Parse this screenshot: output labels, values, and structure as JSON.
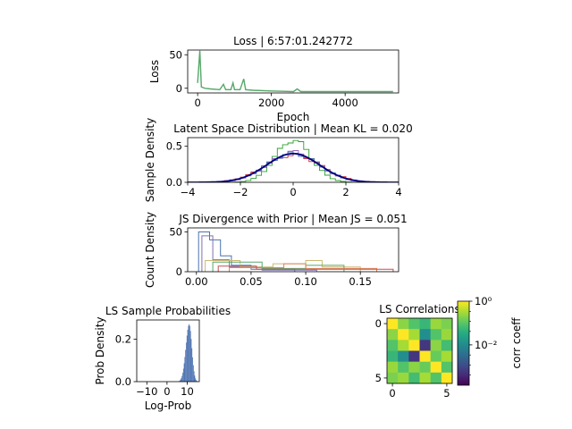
{
  "chart_data": [
    {
      "type": "line",
      "title": "Loss | 6:57:01.242772",
      "xlabel": "Epoch",
      "ylabel": "Loss",
      "xlim": [
        -270,
        5450
      ],
      "ylim": [
        -7,
        57
      ],
      "xticks": [
        0,
        2000,
        4000
      ],
      "yticks": [
        0,
        50
      ],
      "series": [
        {
          "color": "#55a868",
          "points": [
            [
              0,
              8
            ],
            [
              60,
              56
            ],
            [
              100,
              2
            ],
            [
              200,
              0
            ],
            [
              350,
              -1
            ],
            [
              600,
              -2
            ],
            [
              700,
              6
            ],
            [
              760,
              -2
            ],
            [
              900,
              -2
            ],
            [
              960,
              8
            ],
            [
              1000,
              -2
            ],
            [
              1150,
              -2
            ],
            [
              1250,
              14
            ],
            [
              1300,
              -2
            ],
            [
              1500,
              -3
            ],
            [
              2000,
              -4
            ],
            [
              2600,
              -5
            ],
            [
              2700,
              -1
            ],
            [
              2800,
              -5
            ],
            [
              3500,
              -5
            ],
            [
              4000,
              -5
            ],
            [
              4600,
              -5
            ],
            [
              5300,
              -5
            ]
          ]
        }
      ]
    },
    {
      "type": "line",
      "title": "Latent Space Distribution | Mean KL = 0.020",
      "xlabel": "",
      "ylabel": "Sample Density",
      "xlim": [
        -4,
        4
      ],
      "ylim": [
        0,
        0.62
      ],
      "xticks": [
        -4,
        -2,
        0,
        2,
        4
      ],
      "yticks": [
        0.0,
        0.5
      ],
      "series": [
        {
          "color": "#2ca02c",
          "sigma": 0.68
        },
        {
          "color": "#d62728",
          "sigma": 1.05
        },
        {
          "color": "#9467bd",
          "sigma": 0.95
        },
        {
          "color": "#4c72b0",
          "sigma": 1.0
        },
        {
          "color": "#000080",
          "sigma": 1.0
        }
      ]
    },
    {
      "type": "line",
      "title": "JS Divergence with Prior | Mean JS = 0.051",
      "xlabel": "",
      "ylabel": "Count Density",
      "xlim": [
        -0.008,
        0.185
      ],
      "ylim": [
        0,
        55
      ],
      "xticks": [
        0.0,
        0.05,
        0.1,
        0.15
      ],
      "yticks": [
        0,
        50
      ],
      "series": [
        {
          "color": "#4c72b0",
          "points": [
            [
              0.002,
              0
            ],
            [
              0.002,
              50
            ],
            [
              0.012,
              50
            ],
            [
              0.012,
              40
            ],
            [
              0.022,
              40
            ],
            [
              0.022,
              20
            ],
            [
              0.032,
              20
            ],
            [
              0.032,
              8
            ],
            [
              0.05,
              8
            ],
            [
              0.05,
              3
            ],
            [
              0.09,
              3
            ],
            [
              0.09,
              0
            ]
          ]
        },
        {
          "color": "#8172b2",
          "points": [
            [
              0.005,
              0
            ],
            [
              0.005,
              45
            ],
            [
              0.015,
              45
            ],
            [
              0.015,
              15
            ],
            [
              0.03,
              15
            ],
            [
              0.03,
              6
            ],
            [
              0.06,
              6
            ],
            [
              0.06,
              2
            ],
            [
              0.11,
              2
            ],
            [
              0.11,
              0
            ]
          ]
        },
        {
          "color": "#ccb974",
          "points": [
            [
              0.008,
              0
            ],
            [
              0.008,
              14
            ],
            [
              0.04,
              14
            ],
            [
              0.04,
              6
            ],
            [
              0.07,
              6
            ],
            [
              0.07,
              10
            ],
            [
              0.1,
              10
            ],
            [
              0.1,
              14
            ],
            [
              0.115,
              14
            ],
            [
              0.115,
              6
            ],
            [
              0.15,
              6
            ],
            [
              0.15,
              0
            ]
          ]
        },
        {
          "color": "#55a868",
          "points": [
            [
              0.015,
              0
            ],
            [
              0.015,
              12
            ],
            [
              0.06,
              12
            ],
            [
              0.06,
              4
            ],
            [
              0.1,
              4
            ],
            [
              0.1,
              8
            ],
            [
              0.135,
              8
            ],
            [
              0.135,
              0
            ]
          ]
        },
        {
          "color": "#dd8452",
          "points": [
            [
              0.03,
              0
            ],
            [
              0.03,
              5
            ],
            [
              0.08,
              5
            ],
            [
              0.08,
              10
            ],
            [
              0.1,
              10
            ],
            [
              0.1,
              4
            ],
            [
              0.165,
              4
            ],
            [
              0.165,
              0
            ]
          ]
        },
        {
          "color": "#c44e52",
          "points": [
            [
              0.02,
              0
            ],
            [
              0.02,
              7
            ],
            [
              0.055,
              7
            ],
            [
              0.055,
              3
            ],
            [
              0.18,
              3
            ],
            [
              0.18,
              0
            ]
          ]
        }
      ]
    },
    {
      "type": "bar",
      "title": "LS Sample Probabilities",
      "xlabel": "Log-Prob",
      "ylabel": "Prob Density",
      "xlim": [
        -15,
        16
      ],
      "ylim": [
        0,
        0.29
      ],
      "xticks": [
        -10,
        0,
        10
      ],
      "yticks": [
        0.0,
        0.2
      ],
      "color": "#4c72b0",
      "mean": 11,
      "sd": 1.45,
      "peak": 0.27
    },
    {
      "type": "heatmap",
      "title": "LS Correlations",
      "xticks": [
        0,
        5
      ],
      "yticks": [
        0,
        5
      ],
      "colorbar_label": "corr coeff",
      "colorbar_ticks": [
        "10⁰",
        "10⁻²"
      ],
      "matrix": [
        [
          1.0,
          0.3,
          0.15,
          0.1,
          0.35,
          0.25
        ],
        [
          0.3,
          1.0,
          0.4,
          0.03,
          0.15,
          0.35
        ],
        [
          0.15,
          0.4,
          1.0,
          0.003,
          0.3,
          0.12
        ],
        [
          0.1,
          0.03,
          0.003,
          1.0,
          0.2,
          0.4
        ],
        [
          0.35,
          0.15,
          0.3,
          0.2,
          1.0,
          0.15
        ],
        [
          0.25,
          0.35,
          0.12,
          0.4,
          0.15,
          1.0
        ]
      ]
    }
  ]
}
